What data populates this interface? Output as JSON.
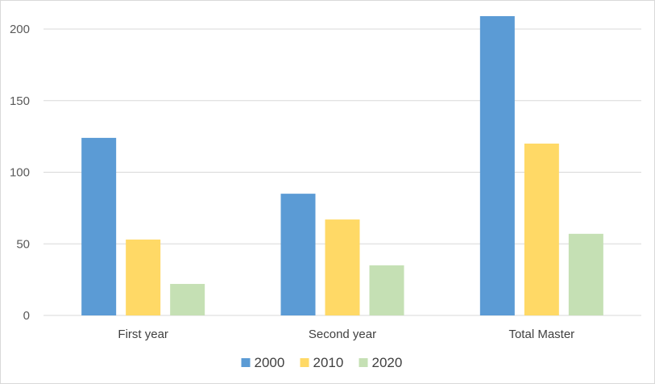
{
  "chart_data": {
    "type": "bar",
    "title": "",
    "xlabel": "",
    "ylabel": "",
    "categories": [
      "First year",
      "Second year",
      "Total Master"
    ],
    "series": [
      {
        "name": "2000",
        "values": [
          124,
          85,
          209
        ],
        "color": "#5b9bd5"
      },
      {
        "name": "2010",
        "values": [
          53,
          67,
          120
        ],
        "color": "#ffd966"
      },
      {
        "name": "2020",
        "values": [
          22,
          35,
          57
        ],
        "color": "#c5e0b4"
      }
    ],
    "ylim": [
      0,
      200
    ],
    "yticks": [
      0,
      50,
      100,
      150,
      200
    ],
    "grid": true,
    "legend": "bottom"
  }
}
